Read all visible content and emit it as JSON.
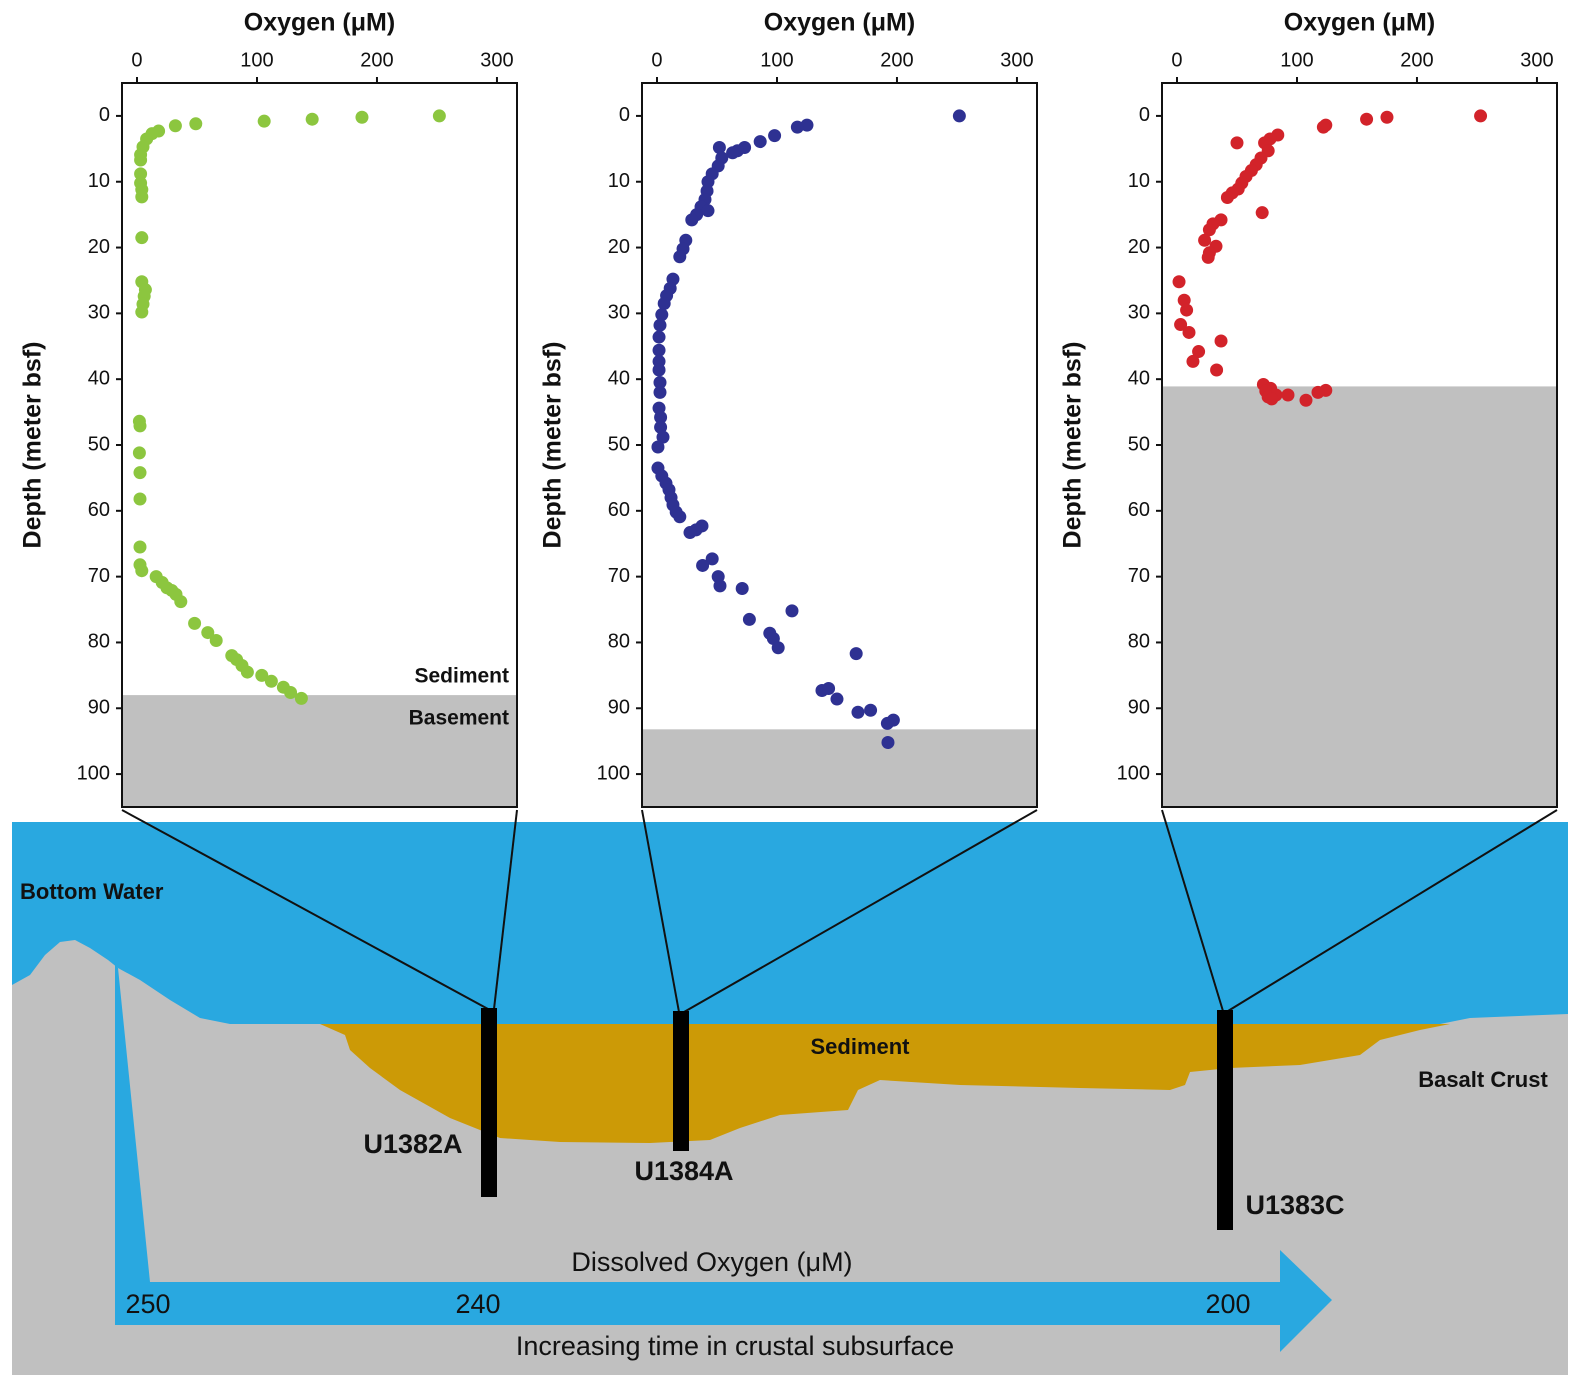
{
  "chart_data": [
    {
      "type": "scatter",
      "x_label": "Oxygen (μM)",
      "y_label": "Depth (meter bsf)",
      "color": "#8cc63f",
      "xlim": [
        -12.5,
        316.7
      ],
      "xticks": [
        0,
        100,
        200,
        300
      ],
      "ylim": [
        105,
        -5
      ],
      "yticks": [
        0,
        10,
        20,
        30,
        40,
        50,
        60,
        70,
        80,
        90,
        100
      ],
      "basement_top": 88,
      "basement_color": "#c0c0c0",
      "annotations": [
        "Sediment",
        "Basement"
      ],
      "x": [
        252,
        187.5,
        146,
        106,
        49,
        32,
        18,
        12.5,
        8,
        5,
        3,
        3,
        3,
        3,
        4,
        4,
        4,
        4,
        7,
        6,
        5,
        4,
        2,
        2.5,
        2,
        2.5,
        2.5,
        2.5,
        2.5,
        4,
        16,
        21,
        25,
        29,
        32.5,
        36.5,
        48,
        59,
        66,
        79,
        83,
        87.5,
        92,
        104,
        112,
        122,
        128,
        137
      ],
      "values": [
        0,
        0.2,
        0.5,
        0.8,
        1.2,
        1.5,
        2.3,
        2.7,
        3.5,
        4.7,
        5.9,
        6.7,
        8.8,
        10.2,
        11.2,
        12.3,
        18.5,
        25.2,
        26.4,
        27.4,
        28.6,
        29.8,
        46.4,
        47.1,
        51.2,
        54.2,
        58.2,
        65.5,
        68.2,
        69.1,
        70,
        70.9,
        71.7,
        72.1,
        72.7,
        73.8,
        77.1,
        78.5,
        79.7,
        82,
        82.6,
        83.5,
        84.5,
        85,
        85.9,
        86.8,
        87.6,
        88.5
      ]
    },
    {
      "type": "scatter",
      "x_label": "Oxygen (μM)",
      "y_label": "Depth (meter bsf)",
      "color": "#2e3192",
      "xlim": [
        -12.5,
        316.7
      ],
      "xticks": [
        0,
        100,
        200,
        300
      ],
      "ylim": [
        105,
        -5
      ],
      "yticks": [
        0,
        10,
        20,
        30,
        40,
        50,
        60,
        70,
        80,
        90,
        100
      ],
      "basement_top": 93.2,
      "basement_color": "#c0c0c0",
      "x": [
        252,
        125,
        117,
        98,
        86,
        73,
        67,
        63,
        52,
        54,
        51,
        46,
        42.5,
        41.7,
        40,
        36.7,
        42.5,
        33,
        29,
        24,
        21.7,
        19,
        13.3,
        11,
        8,
        6,
        4,
        2.5,
        1.7,
        1.7,
        1.7,
        1.7,
        2.5,
        2.5,
        1.7,
        3,
        3,
        5,
        0.8,
        0.8,
        4,
        7.5,
        10,
        11.7,
        13.3,
        16,
        19,
        37.5,
        32.5,
        27.5,
        46,
        38,
        51,
        52.5,
        71,
        112.5,
        77,
        94,
        97,
        101,
        166,
        137.5,
        143,
        150,
        178,
        167.5,
        197,
        192,
        192.5
      ],
      "values": [
        0,
        1.4,
        1.7,
        3,
        3.9,
        4.8,
        5.3,
        5.6,
        4.8,
        6.4,
        7.6,
        8.8,
        10,
        11.4,
        12.7,
        13.8,
        14.4,
        15,
        15.8,
        18.9,
        20.2,
        21.4,
        24.8,
        26.2,
        27.3,
        28.5,
        30.2,
        31.8,
        33.6,
        35.6,
        37.3,
        38.6,
        40.5,
        42,
        44.4,
        45.8,
        47.3,
        48.8,
        50.3,
        53.5,
        54.7,
        55.8,
        56.8,
        58,
        59.1,
        60.2,
        60.9,
        62.3,
        62.9,
        63.3,
        67.3,
        68.3,
        70,
        71.4,
        71.8,
        75.2,
        76.5,
        78.6,
        79.4,
        80.8,
        81.7,
        87.3,
        87,
        88.6,
        90.3,
        90.6,
        91.8,
        92.3,
        95.2
      ]
    },
    {
      "type": "scatter",
      "x_label": "Oxygen (μM)",
      "y_label": "Depth (meter bsf)",
      "color": "#d2232a",
      "xlim": [
        -12.5,
        316.7
      ],
      "xticks": [
        0,
        100,
        200,
        300
      ],
      "ylim": [
        105,
        -5
      ],
      "yticks": [
        0,
        10,
        20,
        30,
        40,
        50,
        60,
        70,
        80,
        90,
        100
      ],
      "basement_top": 41.1,
      "basement_color": "#c0c0c0",
      "x": [
        253,
        175,
        158,
        124,
        122,
        84,
        77.5,
        73,
        50,
        76,
        70,
        66,
        62,
        57.5,
        54,
        51,
        46,
        42,
        71,
        36.7,
        30,
        27,
        23,
        32.5,
        27,
        26,
        1.7,
        6,
        8,
        3,
        10,
        36.7,
        18,
        13.3,
        33,
        72,
        78,
        74,
        82.5,
        124,
        117.5,
        76,
        92.5,
        107.5,
        79
      ],
      "values": [
        0,
        0.2,
        0.5,
        1.4,
        1.7,
        2.9,
        3.5,
        4.1,
        4.1,
        5.3,
        6.4,
        7.4,
        8.3,
        9.2,
        10.2,
        11.1,
        11.7,
        12.4,
        14.7,
        15.8,
        16.4,
        17.3,
        18.9,
        19.8,
        20.8,
        21.5,
        25.2,
        28,
        29.5,
        31.7,
        32.9,
        34.2,
        35.8,
        37.3,
        38.6,
        40.8,
        41.4,
        41.8,
        42.4,
        41.7,
        42,
        42.7,
        42.4,
        43.2,
        43
      ]
    }
  ],
  "diagram": {
    "bottom_water": "Bottom Water",
    "sediment": "Sediment",
    "basalt_crust": "Basalt Crust",
    "sites": [
      "U1382A",
      "U1384A",
      "U1383C"
    ],
    "arrow": {
      "title": "Dissolved Oxygen (μM)",
      "values": [
        250,
        240,
        200
      ],
      "caption": "Increasing time in crustal subsurface"
    }
  }
}
